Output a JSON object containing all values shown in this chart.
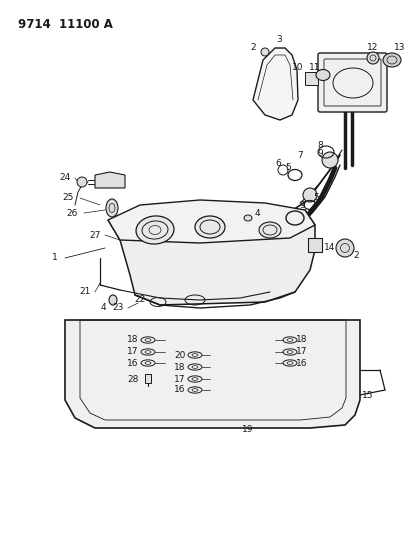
{
  "title": "9714  11100 A",
  "bg_color": "#ffffff",
  "line_color": "#1a1a1a",
  "title_fontsize": 8.5,
  "label_fontsize": 6.5,
  "figsize": [
    4.11,
    5.33
  ],
  "dpi": 100
}
